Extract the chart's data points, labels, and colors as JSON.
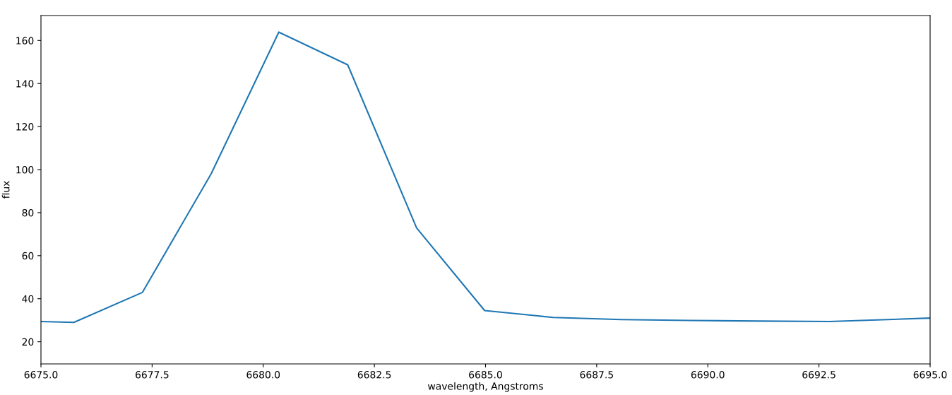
{
  "chart_data": {
    "type": "line",
    "xlabel": "wavelength, Angstroms",
    "ylabel": "flux",
    "x": [
      6675.0,
      6675.74,
      6677.28,
      6678.83,
      6680.35,
      6681.9,
      6683.45,
      6684.98,
      6686.52,
      6688.05,
      6689.6,
      6691.15,
      6692.74,
      6695.0
    ],
    "series": [
      {
        "color": "#1f77b4",
        "values": [
          29.4,
          29.0,
          42.9,
          98.1,
          163.9,
          148.7,
          72.9,
          34.5,
          31.3,
          30.3,
          29.9,
          29.6,
          29.4,
          31.0
        ]
      }
    ],
    "xlim": [
      6675.0,
      6695.0
    ],
    "xticks": [
      {
        "value": 6675.0,
        "label": "6675.0"
      },
      {
        "value": 6677.5,
        "label": "6677.5"
      },
      {
        "value": 6680.0,
        "label": "6680.0"
      },
      {
        "value": 6682.5,
        "label": "6682.5"
      },
      {
        "value": 6685.0,
        "label": "6685.0"
      },
      {
        "value": 6687.5,
        "label": "6687.5"
      },
      {
        "value": 6690.0,
        "label": "6690.0"
      },
      {
        "value": 6692.5,
        "label": "6692.5"
      },
      {
        "value": 6695.0,
        "label": "6695.0"
      }
    ],
    "ylim": [
      9.7,
      171.6
    ],
    "yticks": [
      20,
      40,
      60,
      80,
      100,
      120,
      140,
      160
    ],
    "grid": false,
    "legend": false
  }
}
